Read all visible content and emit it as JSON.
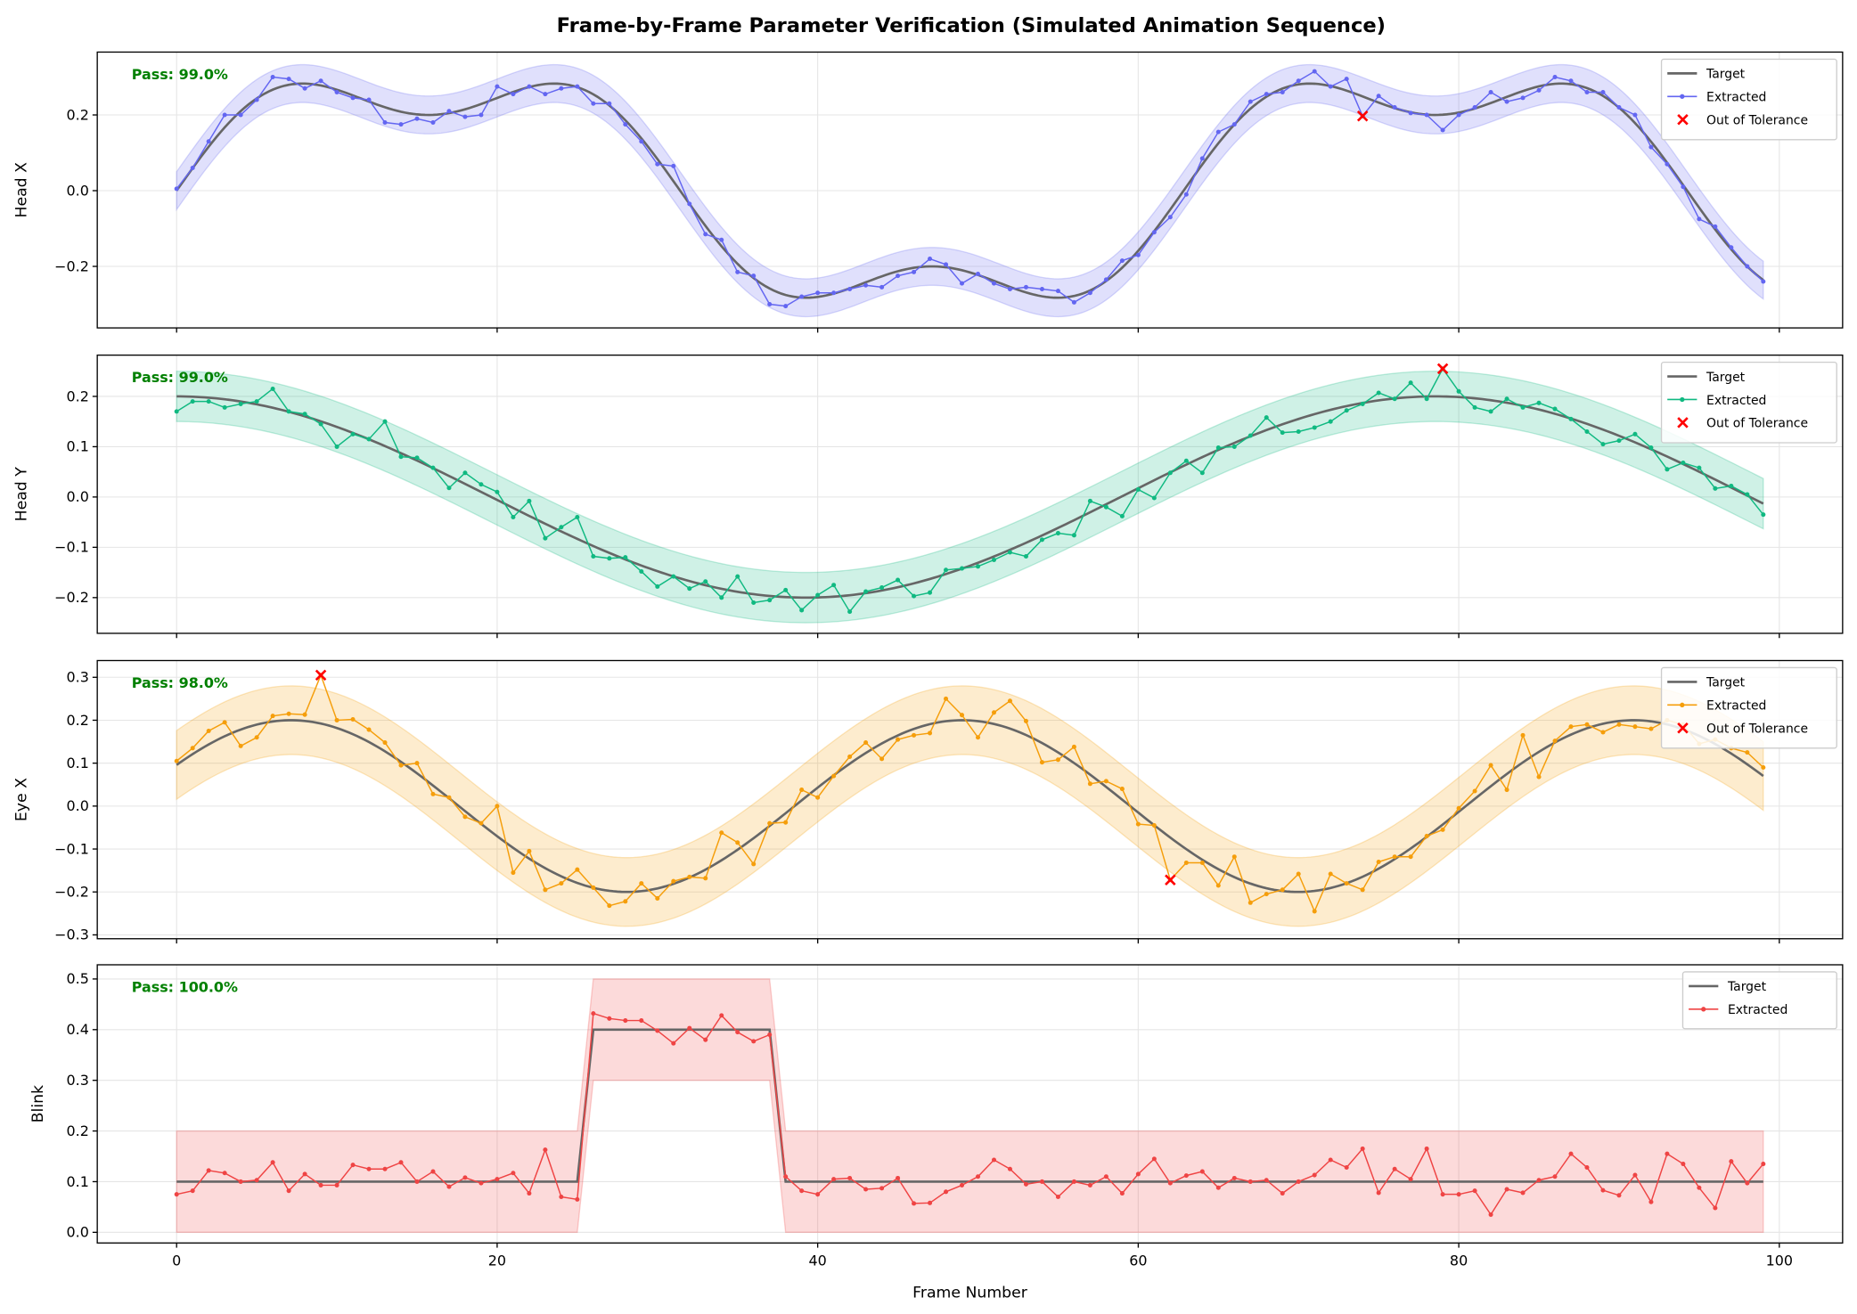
{
  "chart_data": {
    "type": "line",
    "title": "Frame-by-Frame Parameter Verification (Simulated Animation Sequence)",
    "xlabel": "Frame Number",
    "xlim": [
      -4.95,
      103.95
    ],
    "xticks": [
      0,
      20,
      40,
      60,
      80,
      100
    ],
    "grid": true,
    "legend_placement": "top-right",
    "legend_labels": {
      "target": "Target",
      "extracted": "Extracted",
      "outlier": "Out of Tolerance"
    },
    "frames_count": 100,
    "panels": [
      {
        "ylabel": "Head X",
        "pass_text": "Pass: 99.0%",
        "color": "#6366f1",
        "band_color": "#6366f1",
        "tolerance": 0.05,
        "ylim": [
          -0.3625,
          0.366
        ],
        "yticks": [
          -0.2,
          0.0,
          0.2
        ],
        "target_model": {
          "kind": "sum_of_sines",
          "terms": [
            {
              "amp": 0.3,
              "freq": 0.1,
              "phase": 0
            },
            {
              "amp": 0.1,
              "freq": 0.3,
              "phase": 0
            }
          ]
        },
        "extracted": [
          0.005,
          0.06,
          0.13,
          0.2,
          0.2,
          0.24,
          0.3,
          0.295,
          0.27,
          0.29,
          0.26,
          0.245,
          0.24,
          0.18,
          0.175,
          0.19,
          0.18,
          0.21,
          0.195,
          0.2,
          0.275,
          0.255,
          0.275,
          0.255,
          0.27,
          0.275,
          0.23,
          0.23,
          0.175,
          0.13,
          0.07,
          0.065,
          -0.035,
          -0.115,
          -0.13,
          -0.215,
          -0.225,
          -0.3,
          -0.305,
          -0.28,
          -0.27,
          -0.27,
          -0.26,
          -0.25,
          -0.255,
          -0.225,
          -0.215,
          -0.18,
          -0.195,
          -0.245,
          -0.22,
          -0.245,
          -0.26,
          -0.255,
          -0.26,
          -0.265,
          -0.295,
          -0.27,
          -0.235,
          -0.185,
          -0.17,
          -0.11,
          -0.07,
          -0.01,
          0.085,
          0.155,
          0.175,
          0.235,
          0.255,
          0.26,
          0.29,
          0.315,
          0.275,
          0.295,
          0.197,
          0.25,
          0.22,
          0.205,
          0.2,
          0.16,
          0.2,
          0.22,
          0.26,
          0.235,
          0.245,
          0.265,
          0.3,
          0.29,
          0.26,
          0.26,
          0.22,
          0.2,
          0.115,
          0.07,
          0.01,
          -0.075,
          -0.095,
          -0.15,
          -0.2,
          -0.24
        ],
        "out_of_tolerance": [
          {
            "frame": 74,
            "value": 0.197
          }
        ]
      },
      {
        "ylabel": "Head Y",
        "pass_text": "Pass: 99.0%",
        "color": "#10b981",
        "band_color": "#10b981",
        "tolerance": 0.05,
        "ylim": [
          -0.271,
          0.282
        ],
        "yticks": [
          -0.2,
          -0.1,
          0.0,
          0.1,
          0.2
        ],
        "target_model": {
          "kind": "sum_of_sines",
          "terms": [
            {
              "amp": 0.2,
              "freq": 0.08,
              "phase": 1.5708
            }
          ]
        },
        "extracted": [
          0.17,
          0.19,
          0.19,
          0.178,
          0.185,
          0.19,
          0.215,
          0.17,
          0.165,
          0.145,
          0.1,
          0.125,
          0.115,
          0.15,
          0.08,
          0.078,
          0.058,
          0.018,
          0.048,
          0.025,
          0.01,
          -0.04,
          -0.008,
          -0.082,
          -0.06,
          -0.04,
          -0.118,
          -0.122,
          -0.12,
          -0.148,
          -0.178,
          -0.158,
          -0.182,
          -0.168,
          -0.2,
          -0.158,
          -0.21,
          -0.205,
          -0.185,
          -0.225,
          -0.195,
          -0.175,
          -0.228,
          -0.188,
          -0.18,
          -0.165,
          -0.197,
          -0.19,
          -0.145,
          -0.142,
          -0.138,
          -0.125,
          -0.11,
          -0.118,
          -0.085,
          -0.072,
          -0.076,
          -0.008,
          -0.02,
          -0.038,
          0.015,
          -0.002,
          0.048,
          0.072,
          0.048,
          0.098,
          0.1,
          0.122,
          0.158,
          0.128,
          0.13,
          0.138,
          0.15,
          0.172,
          0.185,
          0.207,
          0.195,
          0.227,
          0.195,
          0.255,
          0.21,
          0.178,
          0.17,
          0.195,
          0.178,
          0.187,
          0.175,
          0.155,
          0.13,
          0.105,
          0.112,
          0.125,
          0.098,
          0.055,
          0.068,
          0.058,
          0.017,
          0.022,
          0.005,
          -0.035
        ],
        "out_of_tolerance": [
          {
            "frame": 79,
            "value": 0.255
          }
        ]
      },
      {
        "ylabel": "Eye X",
        "pass_text": "Pass: 98.0%",
        "color": "#f59e0b",
        "band_color": "#f59e0b",
        "tolerance": 0.08,
        "ylim": [
          -0.309,
          0.339
        ],
        "yticks": [
          -0.3,
          -0.2,
          -0.1,
          0.0,
          0.1,
          0.2,
          0.3
        ],
        "target_model": {
          "kind": "sum_of_sines",
          "terms": [
            {
              "amp": 0.2,
              "freq": 0.15,
              "phase": 0.5
            }
          ]
        },
        "extracted": [
          0.105,
          0.135,
          0.175,
          0.195,
          0.14,
          0.16,
          0.21,
          0.215,
          0.213,
          0.305,
          0.2,
          0.202,
          0.178,
          0.148,
          0.095,
          0.1,
          0.028,
          0.02,
          -0.025,
          -0.04,
          0.0,
          -0.155,
          -0.105,
          -0.195,
          -0.18,
          -0.148,
          -0.19,
          -0.232,
          -0.222,
          -0.18,
          -0.215,
          -0.175,
          -0.165,
          -0.168,
          -0.062,
          -0.085,
          -0.135,
          -0.04,
          -0.038,
          0.038,
          0.02,
          0.07,
          0.115,
          0.148,
          0.11,
          0.155,
          0.165,
          0.17,
          0.25,
          0.212,
          0.16,
          0.218,
          0.245,
          0.198,
          0.102,
          0.108,
          0.138,
          0.052,
          0.058,
          0.04,
          -0.042,
          -0.045,
          -0.172,
          -0.132,
          -0.132,
          -0.185,
          -0.118,
          -0.225,
          -0.205,
          -0.195,
          -0.158,
          -0.245,
          -0.158,
          -0.18,
          -0.195,
          -0.13,
          -0.118,
          -0.118,
          -0.07,
          -0.055,
          -0.005,
          0.035,
          0.095,
          0.038,
          0.165,
          0.068,
          0.152,
          0.185,
          0.19,
          0.172,
          0.19,
          0.185,
          0.18,
          0.2,
          0.19,
          0.145,
          0.155,
          0.135,
          0.125,
          0.09
        ],
        "out_of_tolerance": [
          {
            "frame": 9,
            "value": 0.305
          },
          {
            "frame": 62,
            "value": -0.172
          }
        ]
      },
      {
        "ylabel": "Blink",
        "pass_text": "Pass: 100.0%",
        "color": "#ef4444",
        "band_color": "#ef4444",
        "tolerance": 0.1,
        "ylim": [
          -0.021,
          0.528
        ],
        "yticks": [
          0.0,
          0.1,
          0.2,
          0.3,
          0.4,
          0.5
        ],
        "target_model": {
          "kind": "step",
          "base": 0.1,
          "high": 0.4,
          "high_frames": [
            26,
            37
          ]
        },
        "extracted": [
          0.075,
          0.082,
          0.122,
          0.117,
          0.1,
          0.103,
          0.138,
          0.082,
          0.115,
          0.093,
          0.093,
          0.133,
          0.125,
          0.125,
          0.138,
          0.1,
          0.12,
          0.09,
          0.108,
          0.097,
          0.105,
          0.117,
          0.077,
          0.163,
          0.07,
          0.065,
          0.432,
          0.422,
          0.418,
          0.418,
          0.398,
          0.373,
          0.403,
          0.38,
          0.428,
          0.395,
          0.377,
          0.39,
          0.11,
          0.082,
          0.075,
          0.105,
          0.107,
          0.085,
          0.087,
          0.107,
          0.057,
          0.058,
          0.08,
          0.093,
          0.11,
          0.143,
          0.125,
          0.095,
          0.1,
          0.07,
          0.1,
          0.093,
          0.11,
          0.077,
          0.115,
          0.145,
          0.097,
          0.112,
          0.12,
          0.088,
          0.107,
          0.1,
          0.103,
          0.077,
          0.1,
          0.113,
          0.143,
          0.128,
          0.165,
          0.078,
          0.125,
          0.105,
          0.165,
          0.075,
          0.075,
          0.082,
          0.035,
          0.085,
          0.078,
          0.103,
          0.11,
          0.155,
          0.128,
          0.083,
          0.073,
          0.113,
          0.06,
          0.155,
          0.135,
          0.088,
          0.048,
          0.14,
          0.097,
          0.135
        ],
        "out_of_tolerance": []
      }
    ]
  }
}
